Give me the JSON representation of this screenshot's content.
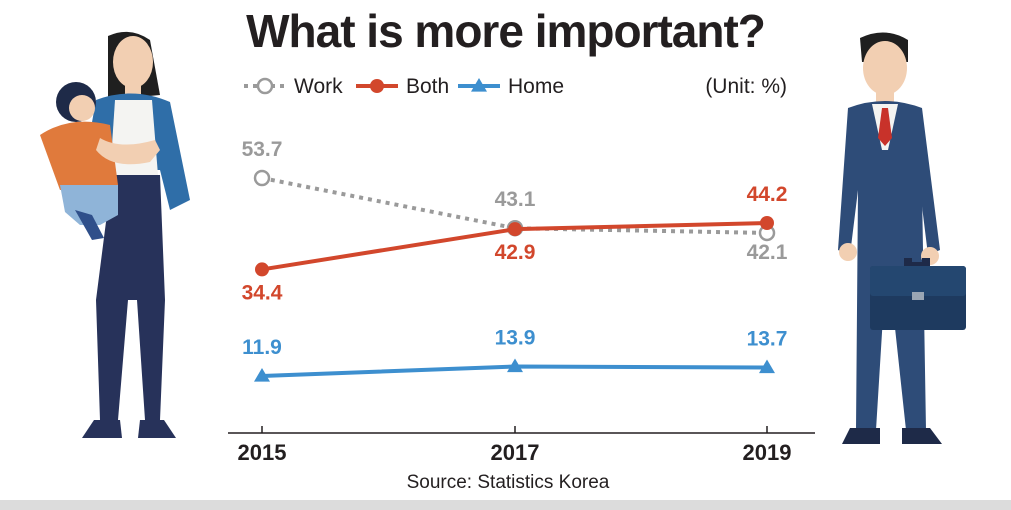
{
  "title": "What is more important?",
  "unit_label": "(Unit: %)",
  "source": "Source: Statistics Korea",
  "colors": {
    "work": "#9a9a9a",
    "both": "#d2472c",
    "home": "#3d8fcf",
    "text": "#231f20"
  },
  "chart_data": {
    "type": "line",
    "x": [
      "2015",
      "2017",
      "2019"
    ],
    "series": [
      {
        "name": "Work",
        "values": [
          53.7,
          43.1,
          42.1
        ],
        "labels": [
          "53.7",
          "43.1",
          "42.1"
        ],
        "style": "dotted",
        "marker": "hollow-circle"
      },
      {
        "name": "Both",
        "values": [
          34.4,
          42.9,
          44.2
        ],
        "labels": [
          "34.4",
          "42.9",
          "44.2"
        ],
        "style": "solid",
        "marker": "filled-circle"
      },
      {
        "name": "Home",
        "values": [
          11.9,
          13.9,
          13.7
        ],
        "labels": [
          "11.9",
          "13.9",
          "13.7"
        ],
        "style": "solid",
        "marker": "triangle"
      }
    ],
    "xlabel": "",
    "ylabel": "",
    "grid": false,
    "legend": "top-left"
  }
}
